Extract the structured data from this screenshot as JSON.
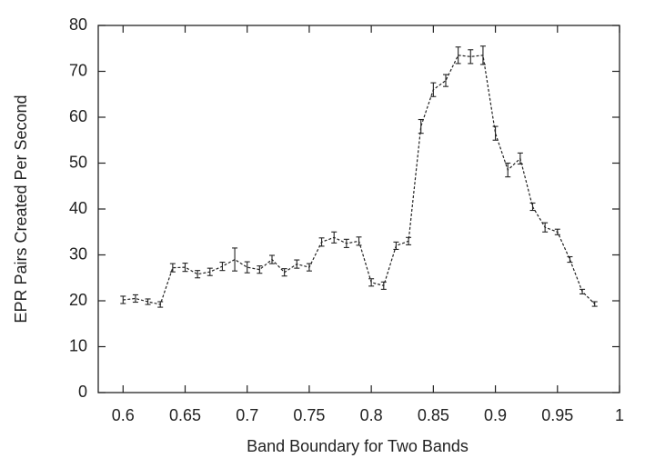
{
  "chart_data": {
    "type": "line_errorbar",
    "xlabel": "Band Boundary for Two Bands",
    "ylabel": "EPR Pairs Created Per Second",
    "x": [
      0.6,
      0.61,
      0.62,
      0.63,
      0.64,
      0.65,
      0.66,
      0.67,
      0.68,
      0.69,
      0.7,
      0.71,
      0.72,
      0.73,
      0.74,
      0.75,
      0.76,
      0.77,
      0.78,
      0.79,
      0.8,
      0.81,
      0.82,
      0.83,
      0.84,
      0.85,
      0.86,
      0.87,
      0.88,
      0.89,
      0.9,
      0.91,
      0.92,
      0.93,
      0.94,
      0.95,
      0.96,
      0.97,
      0.98
    ],
    "values": [
      20.2,
      20.5,
      19.8,
      19.2,
      27.2,
      27.3,
      25.8,
      26.3,
      27.5,
      29,
      27.3,
      26.8,
      29,
      26.2,
      28,
      27.3,
      32.8,
      33.8,
      32.5,
      33,
      24,
      23.3,
      32,
      33,
      58,
      66,
      68,
      73.5,
      73.2,
      73.5,
      56.5,
      48.5,
      51,
      40.5,
      36,
      35,
      29,
      22,
      19.3
    ],
    "errors": [
      0.8,
      0.8,
      0.6,
      0.6,
      0.9,
      0.9,
      0.8,
      0.8,
      0.9,
      2.5,
      1.2,
      0.8,
      0.9,
      0.8,
      0.9,
      0.8,
      0.9,
      1.2,
      0.9,
      0.9,
      0.8,
      0.8,
      0.8,
      0.8,
      1.5,
      1.5,
      1.3,
      1.8,
      1.5,
      2,
      1.5,
      1.5,
      1.2,
      0.8,
      1,
      0.6,
      0.6,
      0.5,
      0.5
    ],
    "color": "#222222",
    "xlim": [
      0.58,
      1
    ],
    "xticks": [
      0.6,
      0.65,
      0.7,
      0.75,
      0.8,
      0.85,
      0.9,
      0.95,
      1
    ],
    "ylim": [
      0,
      80
    ],
    "yticks": [
      0,
      10,
      20,
      30,
      40,
      50,
      60,
      70,
      80
    ]
  }
}
